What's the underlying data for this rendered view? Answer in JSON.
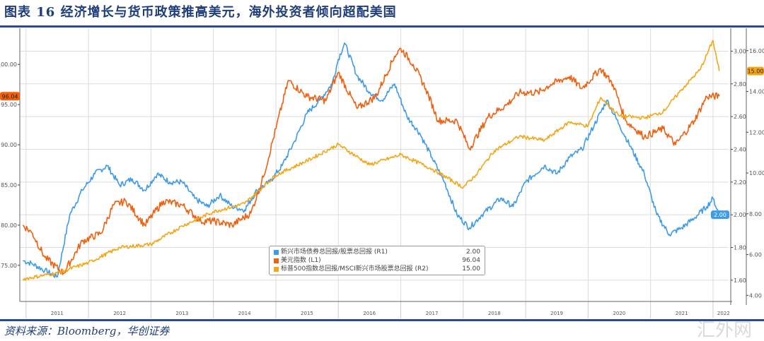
{
  "title": "图表 16  经济增长与货币政策推高美元，海外投资者倾向超配美国",
  "source": "资料来源：Bloomberg，华创证券",
  "watermark": "汇外网",
  "chart_data": {
    "type": "line",
    "title": "图表 16  经济增长与货币政策推高美元，海外投资者倾向超配美国",
    "x_ticks": [
      "2011",
      "2012",
      "2013",
      "2014",
      "2015",
      "2016",
      "2017",
      "2018",
      "2019",
      "2020",
      "2021",
      "2022"
    ],
    "xlim": [
      2010.9,
      2022.25
    ],
    "axes": {
      "L1": {
        "ylim": [
          70.5,
          104.5
        ],
        "ticks": [
          "75.00",
          "80.00",
          "85.00",
          "90.00",
          "95.00",
          "100.00"
        ]
      },
      "R1": {
        "ylim": [
          1.47,
          3.14
        ],
        "ticks": [
          "1.60",
          "1.80",
          "2.00",
          "2.20",
          "2.40",
          "2.60",
          "2.80",
          "3.00"
        ]
      },
      "R2": {
        "ylim": [
          3.7,
          17.1
        ],
        "ticks": [
          "4.00",
          "6.00",
          "8.00",
          "10.00",
          "12.00",
          "14.00",
          "16.00"
        ]
      }
    },
    "series": [
      {
        "name": "新兴市场债券总回报/股票总回报 (R1)",
        "axis": "R1",
        "last": "2.00",
        "color": "#3d9be9",
        "x": [
          2010.95,
          2011.1,
          2011.3,
          2011.5,
          2011.7,
          2011.9,
          2012.1,
          2012.3,
          2012.5,
          2012.7,
          2012.9,
          2013.1,
          2013.3,
          2013.5,
          2013.7,
          2013.9,
          2014.1,
          2014.3,
          2014.5,
          2014.7,
          2014.9,
          2015.1,
          2015.3,
          2015.5,
          2015.7,
          2015.9,
          2016.0,
          2016.1,
          2016.3,
          2016.5,
          2016.7,
          2016.9,
          2017.1,
          2017.3,
          2017.5,
          2017.7,
          2017.9,
          2018.1,
          2018.3,
          2018.6,
          2018.8,
          2019.0,
          2019.3,
          2019.5,
          2019.7,
          2019.9,
          2020.1,
          2020.3,
          2020.5,
          2020.7,
          2020.9,
          2021.1,
          2021.3,
          2021.5,
          2021.7,
          2021.9,
          2022.0,
          2022.1
        ],
        "y": [
          1.72,
          1.7,
          1.66,
          1.62,
          2.0,
          2.15,
          2.25,
          2.3,
          2.18,
          2.22,
          2.15,
          2.25,
          2.2,
          2.2,
          2.1,
          2.05,
          2.12,
          2.05,
          2.03,
          2.15,
          2.2,
          2.3,
          2.45,
          2.62,
          2.7,
          2.8,
          2.95,
          3.05,
          2.85,
          2.75,
          2.7,
          2.8,
          2.6,
          2.5,
          2.35,
          2.2,
          2.0,
          1.92,
          2.0,
          2.1,
          2.05,
          2.2,
          2.3,
          2.25,
          2.35,
          2.4,
          2.55,
          2.7,
          2.55,
          2.4,
          2.25,
          2.0,
          1.88,
          1.92,
          1.98,
          2.05,
          2.1,
          2.0
        ]
      },
      {
        "name": "美元指数 (L1)",
        "axis": "L1",
        "last": "96.04",
        "color": "#f0600f",
        "x": [
          2010.95,
          2011.1,
          2011.3,
          2011.6,
          2011.9,
          2012.2,
          2012.4,
          2012.6,
          2012.9,
          2013.2,
          2013.5,
          2013.8,
          2014.0,
          2014.3,
          2014.6,
          2014.8,
          2015.0,
          2015.2,
          2015.5,
          2015.8,
          2016.0,
          2016.3,
          2016.6,
          2016.9,
          2017.0,
          2017.2,
          2017.4,
          2017.6,
          2017.9,
          2018.1,
          2018.4,
          2018.7,
          2018.9,
          2019.2,
          2019.4,
          2019.7,
          2019.9,
          2020.2,
          2020.4,
          2020.6,
          2020.9,
          2021.2,
          2021.4,
          2021.7,
          2021.9,
          2022.1
        ],
        "y": [
          80,
          79,
          76,
          74,
          78,
          79,
          82.5,
          83,
          80,
          83,
          82.5,
          80.5,
          80.5,
          80,
          81.5,
          86,
          92,
          98,
          96,
          95.5,
          99,
          94.5,
          96,
          101,
          102,
          100,
          97,
          93,
          93,
          89.5,
          93.5,
          95,
          96.5,
          96.5,
          97.5,
          98.5,
          97,
          99.5,
          97.5,
          93,
          91,
          92,
          90,
          93,
          96,
          96.04
        ]
      },
      {
        "name": "标普500指数总回报/MSCI新兴市场股票总回报 (R2)",
        "axis": "R2",
        "last": "15.00",
        "color": "#f3a617",
        "x": [
          2010.95,
          2011.5,
          2012.0,
          2012.5,
          2013.0,
          2013.5,
          2014.0,
          2014.5,
          2015.0,
          2015.5,
          2016.0,
          2016.5,
          2017.0,
          2017.5,
          2018.0,
          2018.2,
          2018.5,
          2018.9,
          2019.3,
          2019.7,
          2020.0,
          2020.2,
          2020.5,
          2020.9,
          2021.2,
          2021.5,
          2021.8,
          2022.0,
          2022.1
        ],
        "y": [
          4.8,
          5.1,
          5.6,
          6.35,
          6.5,
          7.4,
          8.1,
          8.5,
          9.9,
          10.6,
          11.4,
          10.4,
          10.9,
          10.2,
          9.3,
          9.9,
          11.1,
          11.8,
          11.6,
          12.5,
          12.3,
          13.7,
          12.8,
          12.7,
          13.0,
          14.1,
          15.1,
          16.5,
          15.0
        ]
      }
    ],
    "legend": {
      "position": "bottom-center"
    },
    "grid": true
  }
}
